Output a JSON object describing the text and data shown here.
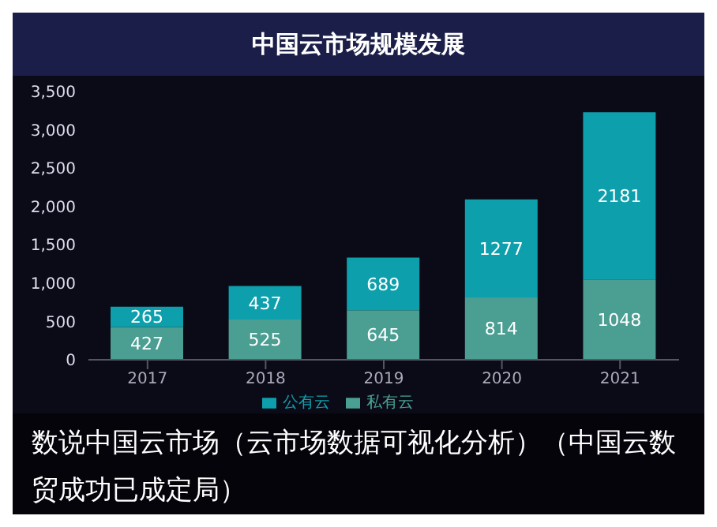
{
  "chart_data": {
    "type": "bar",
    "title": "中国云市场规模发展",
    "categories": [
      "2017",
      "2018",
      "2019",
      "2020",
      "2021"
    ],
    "stacked": true,
    "series": [
      {
        "name": "私有云",
        "color": "#4a9e92",
        "values": [
          427,
          525,
          645,
          814,
          1048
        ]
      },
      {
        "name": "公有云",
        "color": "#0e9fac",
        "values": [
          265,
          437,
          689,
          1277,
          2181
        ]
      }
    ],
    "ylim": [
      0,
      3500
    ],
    "yticks": [
      0,
      500,
      {
        "value": 1000,
        "label": "1,000"
      },
      {
        "value": 1500,
        "label": "1,500"
      },
      {
        "value": 2000,
        "label": "2,000"
      },
      {
        "value": 2500,
        "label": "2,500"
      },
      {
        "value": 3000,
        "label": "3,000"
      },
      {
        "value": 3500,
        "label": "3,500"
      }
    ],
    "data_labels": true,
    "legend": "bottom",
    "grid": false,
    "annotations": [
      "数说中国云市场（云市场数据可视化分析）（中国云数贸成功已成定局）"
    ]
  }
}
